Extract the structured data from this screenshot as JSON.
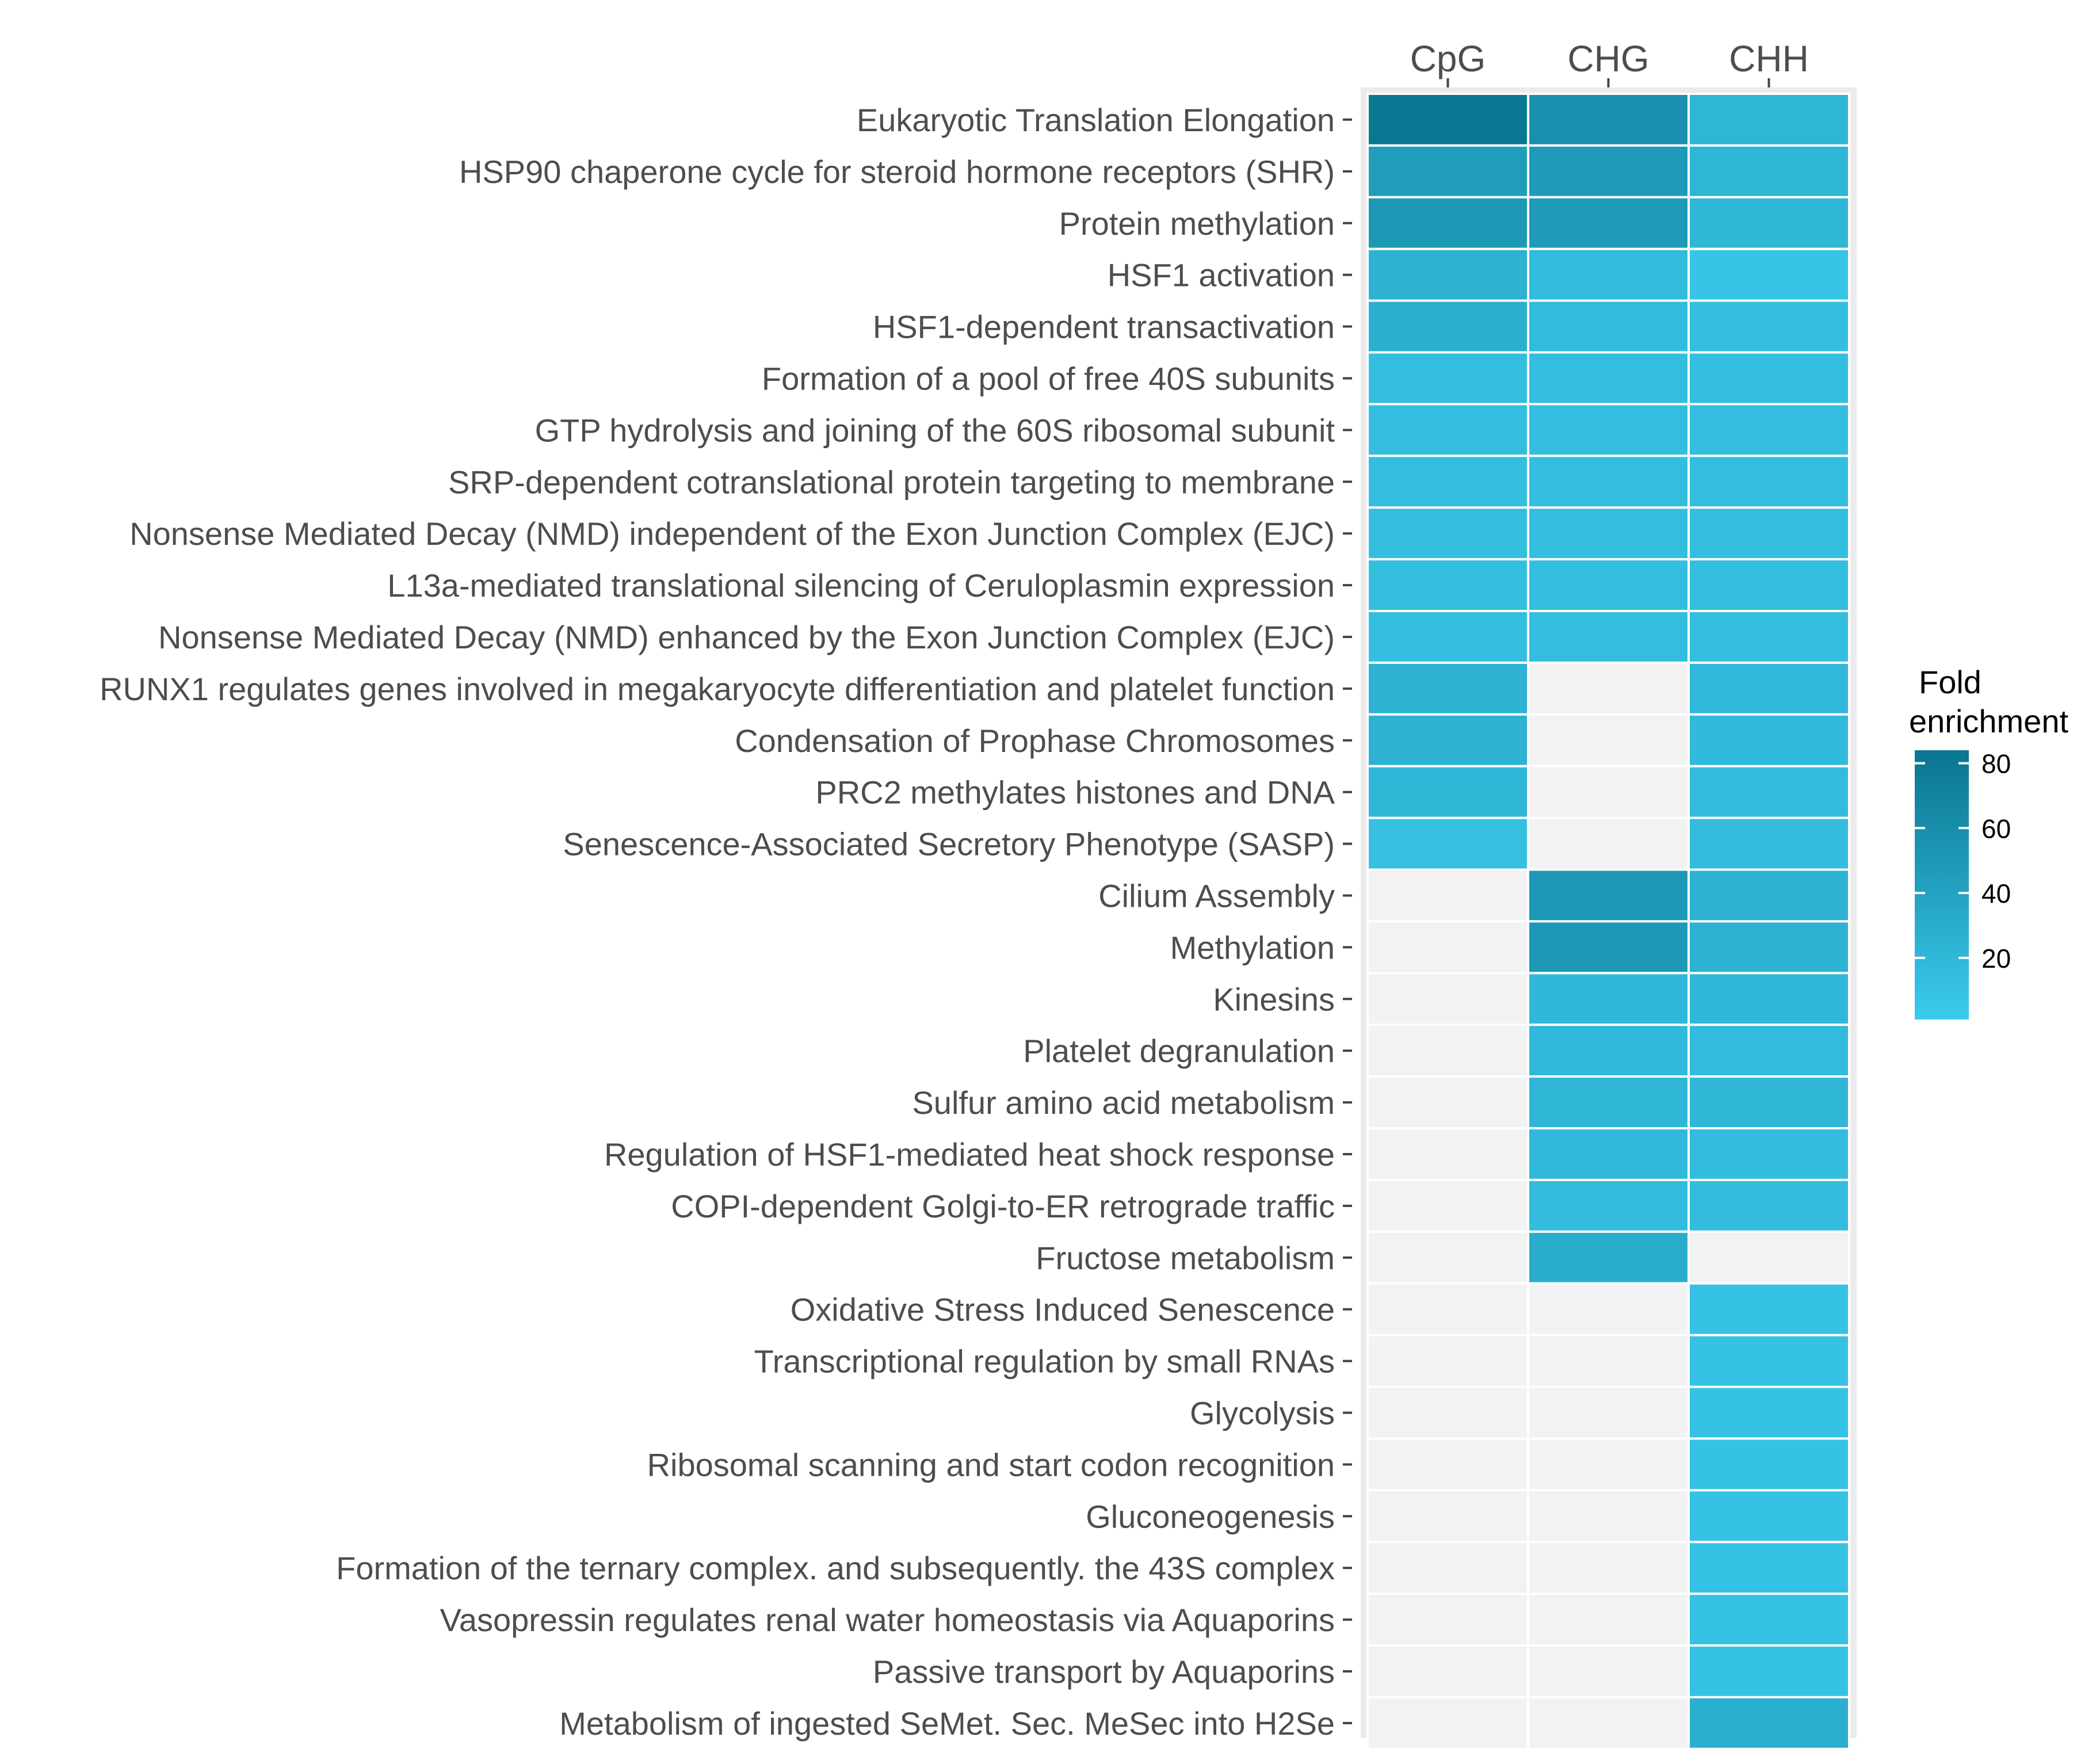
{
  "chart_data": {
    "type": "heatmap",
    "x": [
      "CpG",
      "CHG",
      "CHH"
    ],
    "y": [
      "Eukaryotic Translation Elongation",
      "HSP90 chaperone cycle for steroid hormone receptors (SHR)",
      "Protein methylation",
      "HSF1 activation",
      "HSF1-dependent transactivation",
      "Formation of a pool of free 40S subunits",
      "GTP hydrolysis and joining of the 60S ribosomal subunit",
      "SRP-dependent cotranslational protein targeting to membrane",
      "Nonsense Mediated Decay (NMD) independent of the Exon Junction Complex (EJC)",
      "L13a-mediated translational silencing of Ceruloplasmin expression",
      "Nonsense Mediated Decay (NMD) enhanced by the Exon Junction Complex (EJC)",
      "RUNX1 regulates genes involved in megakaryocyte differentiation and platelet function",
      "Condensation of Prophase Chromosomes",
      "PRC2 methylates histones and DNA",
      "Senescence-Associated Secretory Phenotype (SASP)",
      "Cilium Assembly",
      "Methylation",
      "Kinesins",
      "Platelet degranulation",
      "Sulfur amino acid metabolism",
      "Regulation of HSF1-mediated heat shock response",
      "COPI-dependent Golgi-to-ER retrograde traffic",
      "Fructose metabolism",
      "Oxidative Stress Induced Senescence",
      "Transcriptional regulation by small RNAs",
      "Glycolysis",
      "Ribosomal scanning and start codon recognition",
      "Gluconeogenesis",
      "Formation of the ternary complex. and subsequently. the 43S complex",
      "Vasopressin regulates renal water homeostasis via Aquaporins",
      "Passive transport by Aquaporins",
      "Metabolism of ingested SeMet. Sec. MeSec into H2Se"
    ],
    "values": [
      [
        82,
        58,
        22
      ],
      [
        45,
        48,
        22
      ],
      [
        50,
        48,
        20
      ],
      [
        25,
        16,
        8
      ],
      [
        28,
        16,
        13
      ],
      [
        14,
        14,
        13
      ],
      [
        14,
        14,
        14
      ],
      [
        14,
        14,
        14
      ],
      [
        14,
        14,
        14
      ],
      [
        14,
        14,
        14
      ],
      [
        14,
        14,
        14
      ],
      [
        25,
        null,
        18
      ],
      [
        25,
        null,
        17
      ],
      [
        20,
        null,
        15
      ],
      [
        12,
        null,
        15
      ],
      [
        null,
        50,
        25
      ],
      [
        null,
        50,
        25
      ],
      [
        null,
        19,
        19
      ],
      [
        null,
        18,
        16
      ],
      [
        null,
        22,
        20
      ],
      [
        null,
        18,
        15
      ],
      [
        null,
        15,
        15
      ],
      [
        null,
        30,
        null
      ],
      [
        null,
        null,
        10
      ],
      [
        null,
        null,
        10
      ],
      [
        null,
        null,
        10
      ],
      [
        null,
        null,
        10
      ],
      [
        null,
        null,
        10
      ],
      [
        null,
        null,
        10
      ],
      [
        null,
        null,
        10
      ],
      [
        null,
        null,
        10
      ],
      [
        null,
        null,
        28
      ]
    ],
    "legend": {
      "title_lines": [
        "Fold",
        "enrichment"
      ],
      "ticks": [
        20,
        40,
        60,
        80
      ],
      "range": [
        1,
        84
      ],
      "low_color": "#3bcbee",
      "high_color": "#0a7590"
    },
    "na_color": "#f2f2f2",
    "panel_background": "#ebebeb"
  }
}
